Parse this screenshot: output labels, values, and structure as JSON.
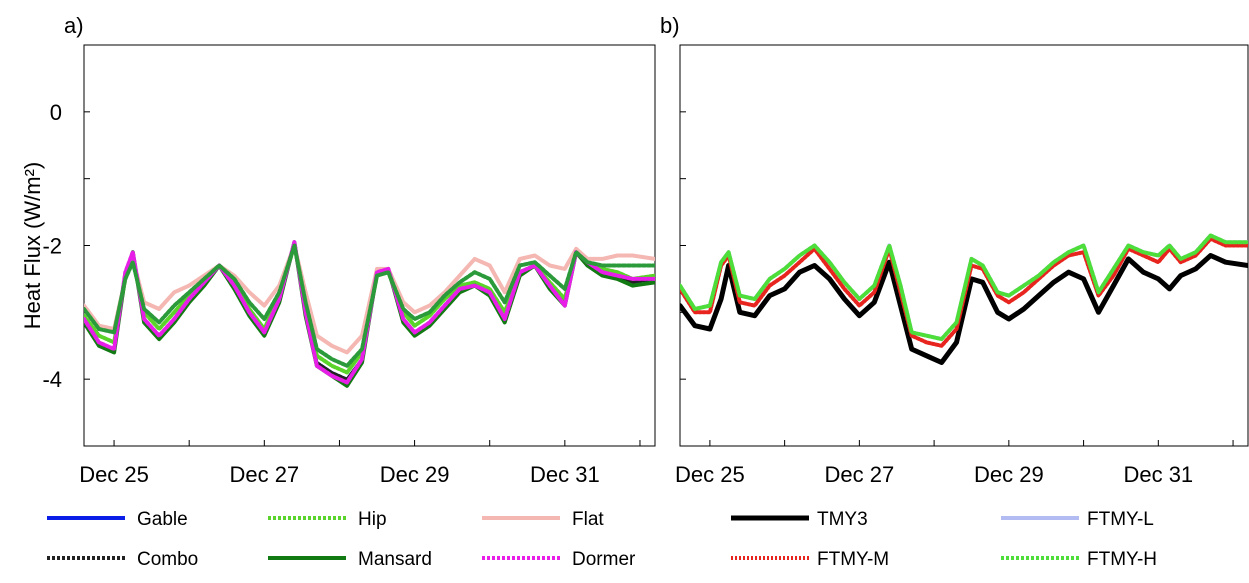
{
  "chart_data": [
    {
      "panel_label": "a)",
      "type": "line",
      "ylabel": "Heat Flux (W/m²)",
      "xlabel": "",
      "title": "",
      "x_unit": "days (Dec 25 = 25)",
      "xlim": [
        24.6,
        32.2
      ],
      "ylim": [
        -5.0,
        1.0
      ],
      "xticks": [
        25,
        27,
        29,
        31
      ],
      "xtick_labels": [
        "Dec 25",
        "Dec 27",
        "Dec 29",
        "Dec 31"
      ],
      "yticks": [
        -4,
        -2,
        0
      ],
      "ytick_labels": [
        "-4",
        "-2",
        "0"
      ],
      "grid": false,
      "legend_position": "below",
      "x": [
        24.6,
        24.8,
        25.0,
        25.15,
        25.25,
        25.4,
        25.6,
        25.8,
        26.0,
        26.2,
        26.4,
        26.6,
        26.8,
        27.0,
        27.2,
        27.4,
        27.55,
        27.7,
        27.9,
        28.1,
        28.3,
        28.5,
        28.65,
        28.85,
        29.0,
        29.2,
        29.4,
        29.6,
        29.8,
        30.0,
        30.2,
        30.4,
        30.6,
        30.8,
        31.0,
        31.15,
        31.3,
        31.5,
        31.7,
        31.9,
        32.2
      ],
      "series": [
        {
          "name": "Gable",
          "color": "#0a1ee8",
          "dash": "",
          "width": 3,
          "values": [
            -3.1,
            -3.45,
            -3.55,
            -2.4,
            -2.1,
            -3.1,
            -3.35,
            -3.1,
            -2.8,
            -2.55,
            -2.3,
            -2.6,
            -3.0,
            -3.3,
            -2.8,
            -1.95,
            -3.0,
            -3.75,
            -3.9,
            -4.0,
            -3.7,
            -2.4,
            -2.35,
            -3.1,
            -3.3,
            -3.15,
            -2.9,
            -2.65,
            -2.6,
            -2.7,
            -3.1,
            -2.4,
            -2.3,
            -2.6,
            -2.85,
            -2.1,
            -2.25,
            -2.4,
            -2.45,
            -2.55,
            -2.5
          ]
        },
        {
          "name": "Combo",
          "color": "#222222",
          "dash": "3,2",
          "width": 3,
          "values": [
            -3.1,
            -3.45,
            -3.55,
            -2.4,
            -2.1,
            -3.1,
            -3.35,
            -3.1,
            -2.8,
            -2.55,
            -2.3,
            -2.6,
            -3.0,
            -3.3,
            -2.8,
            -1.95,
            -3.0,
            -3.75,
            -3.9,
            -4.0,
            -3.7,
            -2.4,
            -2.35,
            -3.1,
            -3.3,
            -3.15,
            -2.9,
            -2.65,
            -2.6,
            -2.7,
            -3.1,
            -2.4,
            -2.3,
            -2.6,
            -2.85,
            -2.1,
            -2.25,
            -2.4,
            -2.45,
            -2.55,
            -2.5
          ]
        },
        {
          "name": "Hip",
          "color": "#5ad42a",
          "dash": "3,2",
          "width": 4,
          "values": [
            -3.05,
            -3.35,
            -3.45,
            -2.5,
            -2.2,
            -3.0,
            -3.25,
            -3.0,
            -2.75,
            -2.5,
            -2.3,
            -2.55,
            -2.95,
            -3.25,
            -2.75,
            -2.0,
            -2.9,
            -3.65,
            -3.8,
            -3.9,
            -3.6,
            -2.45,
            -2.4,
            -3.0,
            -3.2,
            -3.05,
            -2.8,
            -2.6,
            -2.55,
            -2.65,
            -3.0,
            -2.4,
            -2.3,
            -2.55,
            -2.8,
            -2.1,
            -2.25,
            -2.35,
            -2.4,
            -2.5,
            -2.45
          ]
        },
        {
          "name": "Mansard",
          "color": "#127a12",
          "dash": "",
          "width": 4,
          "values": [
            -3.15,
            -3.5,
            -3.6,
            -2.45,
            -2.1,
            -3.15,
            -3.4,
            -3.15,
            -2.85,
            -2.6,
            -2.3,
            -2.65,
            -3.05,
            -3.35,
            -2.85,
            -1.95,
            -3.05,
            -3.8,
            -3.95,
            -4.1,
            -3.75,
            -2.4,
            -2.35,
            -3.15,
            -3.35,
            -3.2,
            -2.95,
            -2.7,
            -2.6,
            -2.75,
            -3.15,
            -2.45,
            -2.3,
            -2.65,
            -2.9,
            -2.1,
            -2.3,
            -2.45,
            -2.5,
            -2.6,
            -2.55
          ]
        },
        {
          "name": "Flat",
          "color": "#f4b7b2",
          "dash": "",
          "width": 4,
          "values": [
            -2.9,
            -3.2,
            -3.25,
            -2.5,
            -2.2,
            -2.85,
            -2.95,
            -2.7,
            -2.6,
            -2.45,
            -2.3,
            -2.45,
            -2.7,
            -2.9,
            -2.6,
            -2.0,
            -2.7,
            -3.35,
            -3.5,
            -3.6,
            -3.35,
            -2.35,
            -2.35,
            -2.85,
            -3.0,
            -2.9,
            -2.7,
            -2.45,
            -2.2,
            -2.3,
            -2.7,
            -2.2,
            -2.15,
            -2.3,
            -2.35,
            -2.05,
            -2.2,
            -2.2,
            -2.15,
            -2.15,
            -2.2
          ]
        },
        {
          "name": "Dormer",
          "color": "#e81ee8",
          "dash": "3,2",
          "width": 4,
          "values": [
            -3.1,
            -3.45,
            -3.55,
            -2.4,
            -2.1,
            -3.1,
            -3.35,
            -3.1,
            -2.8,
            -2.55,
            -2.3,
            -2.6,
            -3.0,
            -3.3,
            -2.8,
            -1.95,
            -3.0,
            -3.8,
            -3.95,
            -4.05,
            -3.7,
            -2.4,
            -2.35,
            -3.1,
            -3.3,
            -3.15,
            -2.9,
            -2.65,
            -2.6,
            -2.7,
            -3.1,
            -2.4,
            -2.3,
            -2.6,
            -2.9,
            -2.1,
            -2.25,
            -2.4,
            -2.45,
            -2.5,
            -2.5
          ]
        },
        {
          "name": "Hip",
          "legend": false,
          "color": "#2a9a3a",
          "dash": "3,2",
          "width": 4,
          "values": [
            -2.95,
            -3.25,
            -3.3,
            -2.5,
            -2.25,
            -2.95,
            -3.15,
            -2.9,
            -2.7,
            -2.5,
            -2.3,
            -2.5,
            -2.85,
            -3.1,
            -2.7,
            -2.0,
            -2.85,
            -3.55,
            -3.7,
            -3.8,
            -3.55,
            -2.45,
            -2.4,
            -2.95,
            -3.1,
            -3.0,
            -2.75,
            -2.55,
            -2.4,
            -2.5,
            -2.85,
            -2.3,
            -2.25,
            -2.45,
            -2.65,
            -2.1,
            -2.25,
            -2.3,
            -2.3,
            -2.3,
            -2.3
          ]
        }
      ],
      "legend": [
        {
          "name": "Gable",
          "color": "#0a1ee8",
          "dash": ""
        },
        {
          "name": "Hip",
          "color": "#5ad42a",
          "dash": "3,2"
        },
        {
          "name": "Flat",
          "color": "#f4b7b2",
          "dash": ""
        },
        {
          "name": "Combo",
          "color": "#222222",
          "dash": "3,2"
        },
        {
          "name": "Mansard",
          "color": "#127a12",
          "dash": ""
        },
        {
          "name": "Dormer",
          "color": "#e81ee8",
          "dash": "3,2"
        }
      ]
    },
    {
      "panel_label": "b)",
      "type": "line",
      "ylabel": "",
      "xlabel": "",
      "title": "",
      "x_unit": "days (Dec 25 = 25)",
      "xlim": [
        24.6,
        32.2
      ],
      "ylim": [
        -5.0,
        1.0
      ],
      "xticks": [
        25,
        27,
        29,
        31
      ],
      "xtick_labels": [
        "Dec 25",
        "Dec 27",
        "Dec 29",
        "Dec 31"
      ],
      "yticks": [
        -4,
        -2,
        0
      ],
      "grid": false,
      "legend_position": "below",
      "x": [
        24.6,
        24.8,
        25.0,
        25.15,
        25.25,
        25.4,
        25.6,
        25.8,
        26.0,
        26.2,
        26.4,
        26.6,
        26.8,
        27.0,
        27.2,
        27.4,
        27.55,
        27.7,
        27.9,
        28.1,
        28.3,
        28.5,
        28.65,
        28.85,
        29.0,
        29.2,
        29.4,
        29.6,
        29.8,
        30.0,
        30.2,
        30.4,
        30.6,
        30.8,
        31.0,
        31.15,
        31.3,
        31.5,
        31.7,
        31.9,
        32.2
      ],
      "series": [
        {
          "name": "TMY3",
          "color": "#000000",
          "dash": "",
          "width": 5,
          "values": [
            -2.9,
            -3.2,
            -3.25,
            -2.8,
            -2.3,
            -3.0,
            -3.05,
            -2.75,
            -2.65,
            -2.4,
            -2.3,
            -2.5,
            -2.8,
            -3.05,
            -2.85,
            -2.25,
            -2.9,
            -3.55,
            -3.65,
            -3.75,
            -3.45,
            -2.5,
            -2.55,
            -3.0,
            -3.1,
            -2.95,
            -2.75,
            -2.55,
            -2.4,
            -2.5,
            -3.0,
            -2.6,
            -2.2,
            -2.4,
            -2.5,
            -2.65,
            -2.45,
            -2.35,
            -2.15,
            -2.25,
            -2.3
          ]
        },
        {
          "name": "FTMY-L",
          "color": "#b3bcf2",
          "dash": "",
          "width": 4,
          "values": [
            -2.6,
            -2.95,
            -2.9,
            -2.25,
            -2.1,
            -2.75,
            -2.8,
            -2.5,
            -2.35,
            -2.15,
            -2.0,
            -2.25,
            -2.55,
            -2.8,
            -2.6,
            -2.0,
            -2.6,
            -3.3,
            -3.35,
            -3.4,
            -3.15,
            -2.2,
            -2.3,
            -2.7,
            -2.75,
            -2.6,
            -2.45,
            -2.25,
            -2.1,
            -2.0,
            -2.7,
            -2.35,
            -2.0,
            -2.1,
            -2.15,
            -2.0,
            -2.2,
            -2.1,
            -1.85,
            -1.95,
            -1.95
          ]
        },
        {
          "name": "FTMY-M",
          "color": "#e8241e",
          "dash": "2,2",
          "width": 4,
          "values": [
            -2.65,
            -3.0,
            -3.0,
            -2.3,
            -2.15,
            -2.85,
            -2.9,
            -2.6,
            -2.45,
            -2.25,
            -2.05,
            -2.35,
            -2.65,
            -2.9,
            -2.7,
            -2.05,
            -2.7,
            -3.35,
            -3.45,
            -3.5,
            -3.25,
            -2.3,
            -2.35,
            -2.75,
            -2.85,
            -2.7,
            -2.5,
            -2.3,
            -2.15,
            -2.1,
            -2.75,
            -2.45,
            -2.05,
            -2.15,
            -2.25,
            -2.05,
            -2.25,
            -2.15,
            -1.9,
            -2.0,
            -2.0
          ]
        },
        {
          "name": "FTMY-H",
          "color": "#4ede3a",
          "dash": "3,2",
          "width": 4,
          "values": [
            -2.6,
            -2.95,
            -2.9,
            -2.25,
            -2.1,
            -2.75,
            -2.8,
            -2.5,
            -2.35,
            -2.15,
            -2.0,
            -2.25,
            -2.55,
            -2.8,
            -2.6,
            -2.0,
            -2.6,
            -3.3,
            -3.35,
            -3.4,
            -3.15,
            -2.2,
            -2.3,
            -2.7,
            -2.75,
            -2.6,
            -2.45,
            -2.25,
            -2.1,
            -2.0,
            -2.7,
            -2.35,
            -2.0,
            -2.1,
            -2.15,
            -2.0,
            -2.2,
            -2.1,
            -1.85,
            -1.95,
            -1.95
          ]
        }
      ],
      "legend": [
        {
          "name": "TMY3",
          "color": "#000000",
          "dash": ""
        },
        {
          "name": "FTMY-L",
          "color": "#b3bcf2",
          "dash": ""
        },
        {
          "name": "FTMY-M",
          "color": "#e8241e",
          "dash": "2,2"
        },
        {
          "name": "FTMY-H",
          "color": "#4ede3a",
          "dash": "3,2"
        }
      ]
    }
  ]
}
